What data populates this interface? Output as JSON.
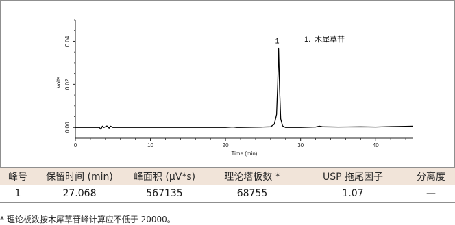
{
  "chart_data": {
    "type": "line",
    "title": "",
    "xlabel": "Time (min)",
    "ylabel": "Volts",
    "xlim": [
      0,
      45
    ],
    "ylim": [
      -0.005,
      0.05
    ],
    "xticks": [
      0,
      10,
      20,
      30,
      40
    ],
    "xtick_labels": [
      "0",
      "10",
      "20",
      "30",
      "40"
    ],
    "yticks": [
      0,
      0.02,
      0.04
    ],
    "ytick_labels": [
      "0.00",
      "0.02",
      "0.04"
    ],
    "grid": false,
    "series": [
      {
        "x": [
          0,
          3.2,
          3.4,
          3.6,
          3.8,
          4.2,
          4.5,
          4.7,
          5,
          10,
          15,
          20,
          21,
          21.5,
          22,
          25,
          26,
          26.5,
          26.8,
          26.95,
          27.07,
          27.2,
          27.35,
          27.6,
          28,
          30,
          32,
          32.5,
          33,
          35,
          38,
          40,
          42,
          44,
          45
        ],
        "values": [
          0,
          0,
          -0.0008,
          0.0006,
          0,
          0.0007,
          -0.0003,
          0.0006,
          0,
          0,
          0,
          0,
          0.0002,
          0,
          0,
          0.0002,
          0.0003,
          0.0015,
          0.006,
          0.02,
          0.0368,
          0.018,
          0.004,
          0.0007,
          0,
          0,
          0.0002,
          0.0006,
          0.0003,
          0.0002,
          0.0003,
          0.0002,
          0.0004,
          0.0005,
          0.0006
        ]
      }
    ],
    "peaks": [
      {
        "label": "1",
        "x": 27.068,
        "y": 0.0368
      }
    ],
    "legend": {
      "position": "top-right",
      "entries": [
        {
          "number": "1.",
          "name": "木犀草苷"
        }
      ]
    }
  },
  "table": {
    "headers": [
      "峰号",
      "保留时间 (min)",
      "峰面积 (μV*s)",
      "理论塔板数 *",
      "USP 拖尾因子",
      "分离度"
    ],
    "rows": [
      [
        "1",
        "27.068",
        "567135",
        "68755",
        "1.07",
        "—"
      ]
    ]
  },
  "footnote": "* 理论板数按木犀草苷峰计算应不低于 20000。",
  "colors": {
    "trace": "#000000",
    "header_background": "#f1e4d9",
    "border": "#8f8f8f"
  }
}
